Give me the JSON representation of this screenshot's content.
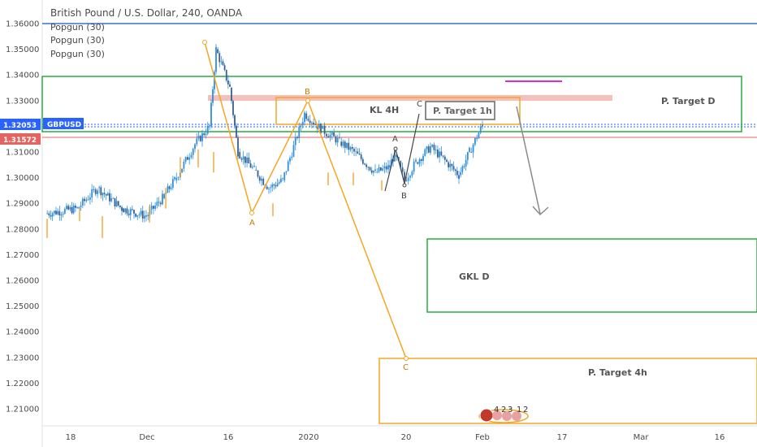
{
  "header": {
    "title": "British Pound / U.S. Dollar, 240, OANDA",
    "indicators": [
      "Popgun (30)",
      "Popgun (30)",
      "Popgun (30)"
    ]
  },
  "price_badges": {
    "current": {
      "value": "1.32053",
      "symbol": "GBPUSD",
      "color": "#2962ff"
    },
    "red": {
      "value": "1.31572",
      "color": "#e5645f"
    }
  },
  "colors": {
    "candle": "#2f8fe0",
    "wick_marker": "#f0960e",
    "pattern": "#f5a623",
    "green_zone": "#27ae3d",
    "kl_zone": "#f1a9a5",
    "blue_line": "#3c6fd6",
    "magenta": "#e028e0",
    "arrow": "#8a8a8a"
  },
  "chart_data": {
    "type": "candlestick",
    "title": "British Pound / U.S. Dollar, 240, OANDA",
    "symbol": "GBPUSD",
    "timeframe": "240",
    "source": "OANDA",
    "y_axis": {
      "range": [
        1.2045,
        1.3633
      ],
      "ticks": [
        "1.36000",
        "1.35000",
        "1.34000",
        "1.33000",
        "1.32000",
        "1.31000",
        "1.30000",
        "1.29000",
        "1.28000",
        "1.27000",
        "1.26000",
        "1.25000",
        "1.24000",
        "1.23000",
        "1.22000",
        "1.21000"
      ]
    },
    "x_axis": {
      "ticks": [
        "18",
        "Dec",
        "16",
        "2020",
        "20",
        "Feb",
        "17",
        "Mar",
        "16"
      ]
    },
    "path": [
      [
        "Nov 14",
        1.286
      ],
      [
        "Nov 18",
        1.288
      ],
      [
        "Nov 21",
        1.296
      ],
      [
        "Nov 25",
        1.288
      ],
      [
        "Nov 28",
        1.285
      ],
      [
        "Dec 2",
        1.292
      ],
      [
        "Dec 5",
        1.299
      ],
      [
        "Dec 9",
        1.313
      ],
      [
        "Dec 12",
        1.32
      ],
      [
        "Dec 13",
        1.35
      ],
      [
        "Dec 16",
        1.335
      ],
      [
        "Dec 18",
        1.31
      ],
      [
        "Dec 20",
        1.303
      ],
      [
        "Dec 24",
        1.296
      ],
      [
        "Dec 26",
        1.299
      ],
      [
        "Dec 31",
        1.325
      ],
      [
        "Jan 2",
        1.319
      ],
      [
        "Jan 6",
        1.314
      ],
      [
        "Jan 8",
        1.31
      ],
      [
        "Jan 13",
        1.302
      ],
      [
        "Jan 16",
        1.304
      ],
      [
        "Jan 17",
        1.309
      ],
      [
        "Jan 20",
        1.299
      ],
      [
        "Jan 22",
        1.306
      ],
      [
        "Jan 24",
        1.312
      ],
      [
        "Jan 27",
        1.306
      ],
      [
        "Jan 29",
        1.301
      ],
      [
        "Jan 30",
        1.31
      ],
      [
        "Feb 1",
        1.3205
      ]
    ],
    "current_price": 1.32053,
    "red_price_line": 1.31572,
    "horizontal_lines": [
      1.36
    ],
    "pattern_xabcd": [
      {
        "label": "",
        "date": "Dec 12",
        "price": 1.352
      },
      {
        "label": "A",
        "date": "Dec 23",
        "price": 1.2865
      },
      {
        "label": "B",
        "date": "Dec 31",
        "price": 1.329
      },
      {
        "label": "C",
        "date": "Jan 20",
        "price": 1.23
      }
    ],
    "small_abc": [
      {
        "label": "A",
        "date": "Jan 19",
        "price": 1.312
      },
      {
        "label": "B",
        "date": "Jan 20",
        "price": 1.297
      },
      {
        "label": "C",
        "date": "Jan 21",
        "price": 1.326
      }
    ],
    "zones": [
      {
        "label": "P. Target D",
        "price_top": 1.339,
        "price_bottom": 1.317
      },
      {
        "label": "KL 4H",
        "price_top": 1.3312,
        "price_bottom": 1.3292
      },
      {
        "label": "P. Target 1h",
        "price_top": 1.331,
        "price_bottom": 1.3205
      },
      {
        "label": "GKL D",
        "price_top": 1.276,
        "price_bottom": 1.2475
      },
      {
        "label": "P. Target 4h",
        "price_top": 1.23,
        "price_bottom": 1.205
      }
    ],
    "events": [
      "4",
      "2",
      "3",
      "1",
      "2"
    ]
  }
}
